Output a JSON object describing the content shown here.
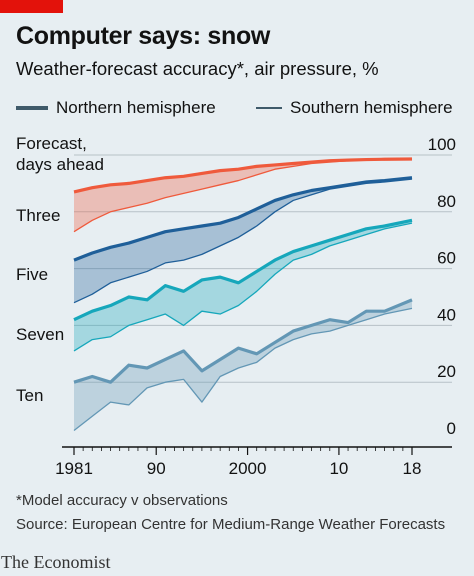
{
  "header": {
    "title": "Computer says: snow",
    "subtitle": "Weather-forecast accuracy*, air pressure, %"
  },
  "legend": {
    "items": [
      {
        "label": "Northern hemisphere",
        "style": "thick"
      },
      {
        "label": "Southern hemisphere",
        "style": "thin"
      }
    ]
  },
  "footer": {
    "note": "*Model accuracy v observations",
    "source": "Source: European Centre for Medium-Range Weather Forecasts",
    "brand": "The Economist"
  },
  "colors": {
    "background": "#e7eef2",
    "accent_red": "#e3120b",
    "three_days": "#ef5a3c",
    "five_days": "#1f5f99",
    "seven_days": "#16a7bb",
    "ten_days": "#6397b5",
    "gridline": "#b7c1c7",
    "text": "#121212"
  },
  "chart_data": {
    "type": "area",
    "title": "Computer says: snow",
    "subtitle": "Weather-forecast accuracy*, air pressure, %",
    "y_axis_title": "Forecast, days ahead",
    "ylim": [
      0,
      100
    ],
    "xlim": [
      1981,
      2018
    ],
    "y_ticks": [
      0,
      20,
      40,
      60,
      80,
      100
    ],
    "x_ticks": [
      {
        "value": 1981,
        "label": "1981"
      },
      {
        "value": 1990,
        "label": "90"
      },
      {
        "value": 2000,
        "label": "2000"
      },
      {
        "value": 2010,
        "label": "10"
      },
      {
        "value": 2018,
        "label": "18"
      }
    ],
    "grid": true,
    "legend_position": "top",
    "series": [
      {
        "band_label": "Three",
        "color": "#ef5a3c",
        "x": [
          1981,
          1983,
          1985,
          1987,
          1989,
          1991,
          1993,
          1995,
          1997,
          1999,
          2001,
          2003,
          2005,
          2007,
          2009,
          2011,
          2013,
          2015,
          2018
        ],
        "north": [
          87,
          88.5,
          89.5,
          90,
          91,
          92,
          92.5,
          93.5,
          94.5,
          95,
          96,
          96.5,
          97,
          97.5,
          98,
          98.2,
          98.4,
          98.5,
          98.6
        ],
        "south": [
          73,
          77,
          80,
          81.5,
          83,
          85,
          86.5,
          88,
          89.5,
          91,
          93,
          95,
          96,
          97,
          97.5,
          98,
          98.3,
          98.4,
          98.5
        ]
      },
      {
        "band_label": "Five",
        "color": "#1f5f99",
        "x": [
          1981,
          1983,
          1985,
          1987,
          1989,
          1991,
          1993,
          1995,
          1997,
          1999,
          2001,
          2003,
          2005,
          2007,
          2009,
          2011,
          2013,
          2015,
          2018
        ],
        "north": [
          63,
          65.5,
          67.5,
          69,
          71,
          73,
          74,
          75,
          76,
          78,
          81,
          84,
          86,
          87.5,
          88.5,
          89.5,
          90.5,
          91,
          92
        ],
        "south": [
          48,
          51,
          55,
          57,
          59,
          62,
          63,
          65,
          68,
          71,
          75,
          80,
          84,
          86,
          88,
          89,
          90,
          90.5,
          91.5
        ]
      },
      {
        "band_label": "Seven",
        "color": "#16a7bb",
        "x": [
          1981,
          1983,
          1985,
          1987,
          1989,
          1991,
          1993,
          1995,
          1997,
          1999,
          2001,
          2003,
          2005,
          2007,
          2009,
          2011,
          2013,
          2015,
          2018
        ],
        "north": [
          42,
          45,
          47,
          50,
          49,
          54,
          52,
          56,
          57,
          55,
          59,
          63,
          66,
          68,
          70,
          72,
          74,
          75,
          77
        ],
        "south": [
          31,
          35,
          36,
          40,
          42,
          44,
          40,
          45,
          44,
          47,
          52,
          58,
          63,
          65,
          68,
          70,
          72,
          74,
          76
        ]
      },
      {
        "band_label": "Ten",
        "color": "#6397b5",
        "x": [
          1981,
          1983,
          1985,
          1987,
          1989,
          1991,
          1993,
          1995,
          1997,
          1999,
          2001,
          2003,
          2005,
          2007,
          2009,
          2011,
          2013,
          2015,
          2018
        ],
        "north": [
          20,
          22,
          20,
          26,
          25,
          28,
          31,
          24,
          28,
          32,
          30,
          34,
          38,
          40,
          42,
          41,
          45,
          45,
          49
        ],
        "south": [
          3,
          8,
          13,
          12,
          18,
          20,
          21,
          13,
          22,
          25,
          27,
          32,
          35,
          37,
          38,
          40,
          42,
          44,
          46
        ]
      }
    ]
  }
}
